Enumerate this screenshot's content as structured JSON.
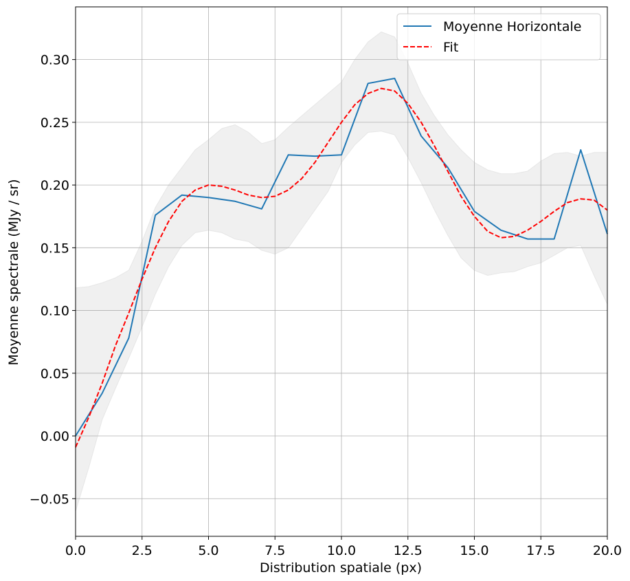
{
  "chart_data": {
    "type": "line",
    "title": "",
    "xlabel": "Distribution spatiale (px)",
    "ylabel": "Moyenne spectrale (MJy / sr)",
    "xlim": [
      0,
      20
    ],
    "ylim": [
      -0.08,
      0.342
    ],
    "xticks": [
      0,
      2.5,
      5,
      7.5,
      10,
      12.5,
      15,
      17.5,
      20
    ],
    "xtick_labels": [
      "0.0",
      "2.5",
      "5.0",
      "7.5",
      "10.0",
      "12.5",
      "15.0",
      "17.5",
      "20.0"
    ],
    "yticks": [
      -0.05,
      0,
      0.05,
      0.1,
      0.15,
      0.2,
      0.25,
      0.3
    ],
    "ytick_labels": [
      "−0.05",
      "0.00",
      "0.05",
      "0.10",
      "0.15",
      "0.20",
      "0.25",
      "0.30"
    ],
    "grid": true,
    "legend_position": "top-right",
    "series": [
      {
        "name": "Moyenne Horizontale",
        "color": "#1f77b4",
        "style": "solid",
        "x": [
          0,
          1,
          2,
          3,
          4,
          5,
          6,
          7,
          8,
          9,
          10,
          11,
          12,
          13,
          14,
          15,
          16,
          17,
          18,
          19,
          20
        ],
        "y": [
          0.0,
          0.034,
          0.078,
          0.176,
          0.192,
          0.19,
          0.187,
          0.181,
          0.224,
          0.223,
          0.224,
          0.281,
          0.285,
          0.239,
          0.214,
          0.179,
          0.164,
          0.157,
          0.157,
          0.228,
          0.161
        ]
      },
      {
        "name": "Fit",
        "color": "#ff0000",
        "style": "dashed",
        "x": [
          0,
          0.5,
          1,
          1.5,
          2,
          2.5,
          3,
          3.5,
          4,
          4.5,
          5,
          5.5,
          6,
          6.5,
          7,
          7.5,
          8,
          8.5,
          9,
          9.5,
          10,
          10.5,
          11,
          11.5,
          12,
          12.5,
          13,
          13.5,
          14,
          14.5,
          15,
          15.5,
          16,
          16.5,
          17,
          17.5,
          18,
          18.5,
          19,
          19.5,
          20
        ],
        "y": [
          -0.009,
          0.015,
          0.042,
          0.072,
          0.098,
          0.125,
          0.15,
          0.171,
          0.187,
          0.196,
          0.2,
          0.199,
          0.196,
          0.192,
          0.19,
          0.191,
          0.196,
          0.205,
          0.218,
          0.234,
          0.25,
          0.264,
          0.273,
          0.277,
          0.275,
          0.265,
          0.25,
          0.231,
          0.211,
          0.191,
          0.175,
          0.163,
          0.158,
          0.159,
          0.164,
          0.171,
          0.179,
          0.186,
          0.189,
          0.188,
          0.18
        ]
      }
    ],
    "band": {
      "color": "#f0f0f0",
      "x": [
        0,
        0.5,
        1,
        1.5,
        2,
        2.5,
        3,
        3.5,
        4,
        4.5,
        5,
        5.5,
        6,
        6.5,
        7,
        7.5,
        8,
        8.5,
        9,
        9.5,
        10,
        10.5,
        11,
        11.5,
        12,
        12.5,
        13,
        13.5,
        14,
        14.5,
        15,
        15.5,
        16,
        16.5,
        17,
        17.5,
        18,
        18.5,
        19,
        19.5,
        20
      ],
      "upper": [
        0.118,
        0.119,
        0.122,
        0.126,
        0.132,
        0.155,
        0.182,
        0.2,
        0.214,
        0.228,
        0.236,
        0.245,
        0.248,
        0.242,
        0.233,
        0.236,
        0.246,
        0.255,
        0.264,
        0.273,
        0.282,
        0.3,
        0.314,
        0.322,
        0.318,
        0.297,
        0.273,
        0.255,
        0.24,
        0.228,
        0.218,
        0.212,
        0.209,
        0.209,
        0.211,
        0.219,
        0.225,
        0.226,
        0.223,
        0.226,
        0.226
      ],
      "lower": [
        -0.06,
        -0.025,
        0.013,
        0.038,
        0.062,
        0.087,
        0.113,
        0.135,
        0.152,
        0.162,
        0.164,
        0.162,
        0.157,
        0.155,
        0.148,
        0.145,
        0.15,
        0.165,
        0.18,
        0.195,
        0.218,
        0.232,
        0.242,
        0.243,
        0.24,
        0.222,
        0.202,
        0.18,
        0.16,
        0.142,
        0.132,
        0.128,
        0.13,
        0.131,
        0.135,
        0.138,
        0.144,
        0.15,
        0.152,
        0.128,
        0.105
      ]
    }
  }
}
